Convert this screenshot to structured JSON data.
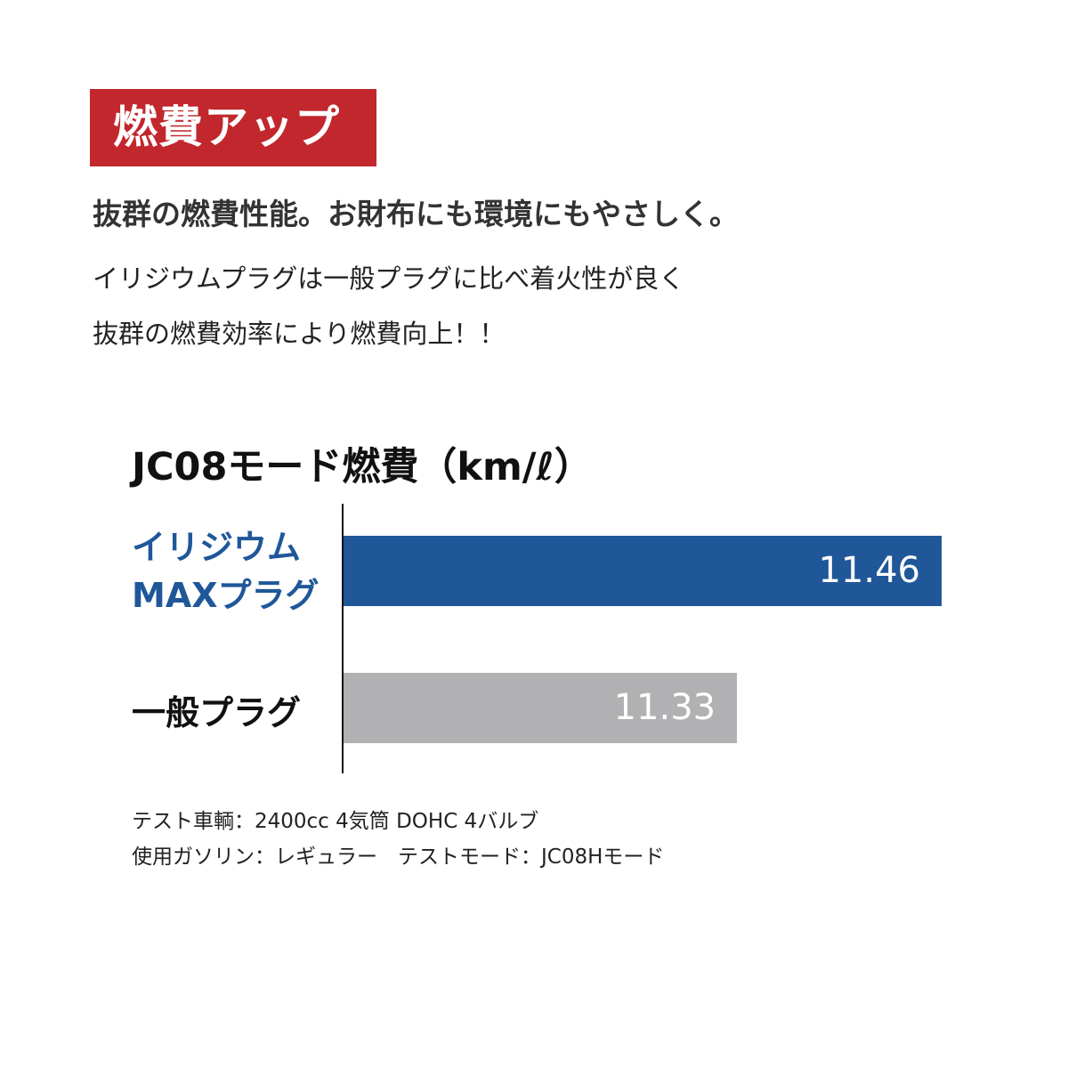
{
  "badge": {
    "text": "燃費アップ",
    "color": "#c1272d"
  },
  "headline": "抜群の燃費性能。お財布にも環境にもやさしく。",
  "body": [
    "イリジウムプラグは一般プラグに比べ着火性が良く",
    "抜群の燃費効率により燃費向上！！"
  ],
  "chart_data": {
    "type": "bar",
    "orientation": "horizontal",
    "title": "JC08モード燃費（km/ℓ）",
    "categories": [
      {
        "lines": [
          "イリジウム",
          "MAXプラグ"
        ],
        "color": "#1f5799"
      },
      {
        "lines": [
          "一般プラグ"
        ],
        "color": "#111111"
      }
    ],
    "values": [
      11.46,
      11.33
    ],
    "data_labels": [
      "11.46",
      "11.33"
    ],
    "bar_colors": [
      "#1f5799",
      "#b1b1b3"
    ],
    "xlim": [
      11.08,
      11.46
    ],
    "grid": false
  },
  "notes": [
    "テスト車輌：2400cc 4気筒 DOHC 4バルブ",
    "使用ガソリン：レギュラー　テストモード：JC08Hモード"
  ]
}
